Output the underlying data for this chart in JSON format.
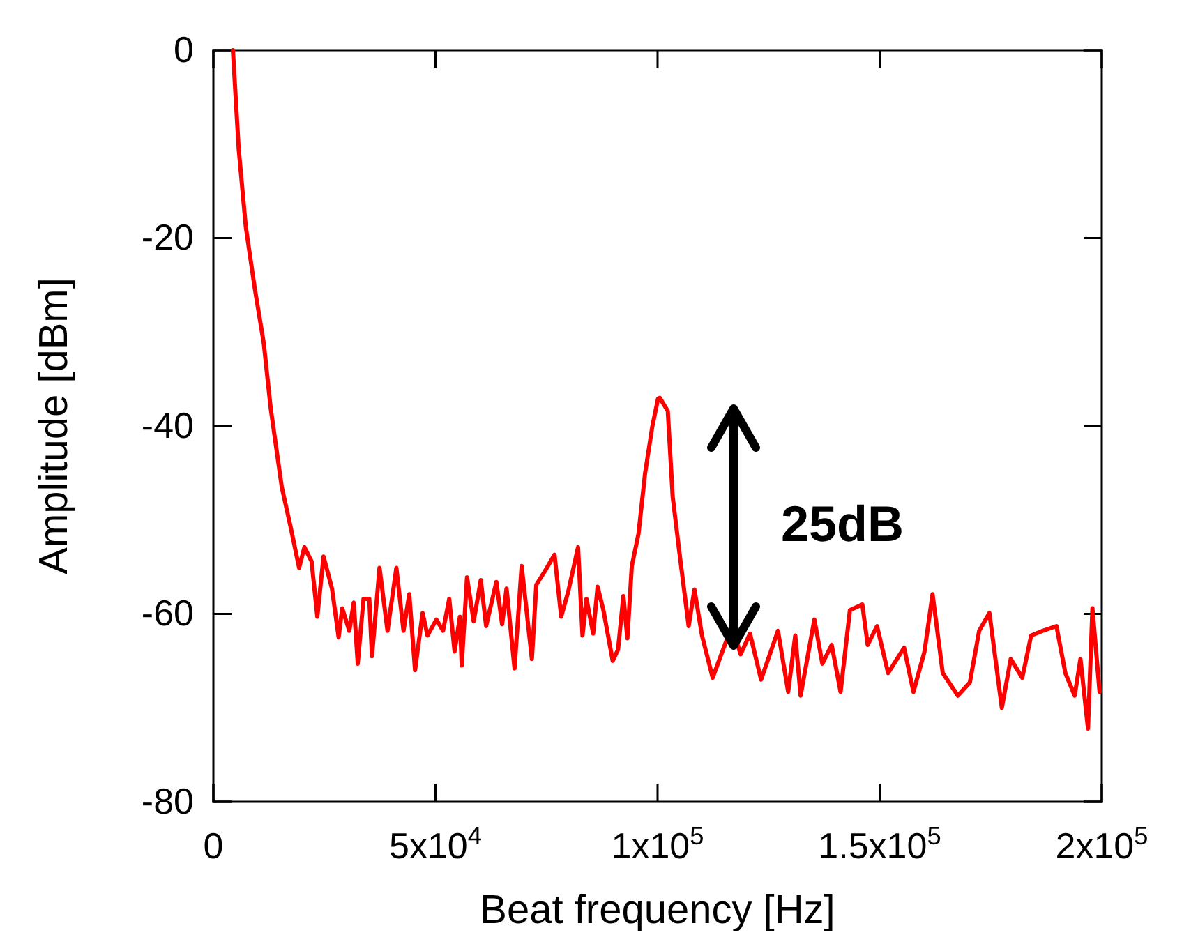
{
  "chart_data": {
    "type": "line",
    "xlabel": "Beat frequency [Hz]",
    "ylabel": "Amplitude [dBm]",
    "xlim": [
      0,
      200000
    ],
    "ylim": [
      -80,
      0
    ],
    "xticks": [
      0,
      {
        "value": 50000,
        "label": "5x10$^{4}$"
      },
      {
        "value": 100000,
        "label": "1x10$^{5}$"
      },
      {
        "value": 150000,
        "label": "1.5x10$^{5}$"
      },
      {
        "value": 200000,
        "label": "2x10$^{5}$"
      }
    ],
    "yticks": [
      -80,
      -60,
      -40,
      -20,
      0
    ],
    "grid": false,
    "marker": "none",
    "line_style": "solid",
    "annotations": [
      "25dB"
    ],
    "series": [
      {
        "color": "#ff0000",
        "x": [
          4400,
          5700,
          7300,
          9300,
          11350,
          12900,
          15400,
          17500,
          19300,
          20500,
          22100,
          23400,
          24800,
          26700,
          28200,
          29000,
          30600,
          31600,
          32500,
          33800,
          35100,
          35700,
          37400,
          39200,
          41200,
          42800,
          44100,
          45400,
          47100,
          48200,
          50200,
          51700,
          53100,
          54300,
          55500,
          55900,
          57100,
          58600,
          60200,
          61400,
          63700,
          65000,
          66000,
          67800,
          69400,
          71700,
          72700,
          74700,
          76800,
          78300,
          79900,
          82100,
          83100,
          84000,
          85500,
          86500,
          87800,
          89900,
          91100,
          92300,
          93200,
          94200,
          95700,
          97200,
          98800,
          100100,
          100500,
          102300,
          103400,
          104900,
          107000,
          108300,
          110000,
          112400,
          116700,
          118700,
          120800,
          123300,
          127100,
          129400,
          131000,
          132200,
          135300,
          137100,
          139200,
          141200,
          143300,
          146100,
          147300,
          149400,
          151900,
          155500,
          157600,
          160100,
          161900,
          164200,
          167600,
          170300,
          172400,
          174700,
          177500,
          179500,
          182100,
          184100,
          186700,
          189800,
          191800,
          193900,
          195200,
          196900,
          197900,
          199500
        ],
        "values": [
          0,
          -10.5,
          -18.8,
          -25.3,
          -31.2,
          -38.1,
          -46.5,
          -51,
          -55.1,
          -52.9,
          -54.4,
          -60.3,
          -53.9,
          -57.3,
          -62.5,
          -59.4,
          -61.8,
          -58.8,
          -65.3,
          -58.4,
          -58.4,
          -64.5,
          -55.1,
          -61.8,
          -55.1,
          -61.8,
          -57.9,
          -66,
          -59.9,
          -62.3,
          -60.6,
          -61.8,
          -58.4,
          -64,
          -60.3,
          -65.5,
          -56.1,
          -60.8,
          -56.4,
          -61.3,
          -56.6,
          -61.1,
          -57.3,
          -65.8,
          -54.9,
          -64.8,
          -56.9,
          -55.4,
          -53.7,
          -60.3,
          -57.6,
          -52.9,
          -62.3,
          -58.4,
          -62.1,
          -57.1,
          -59.6,
          -65,
          -63.8,
          -58.1,
          -62.6,
          -54.9,
          -51.5,
          -45,
          -40.1,
          -37.1,
          -37,
          -38.4,
          -47.5,
          -53.4,
          -61.3,
          -57.4,
          -62.3,
          -66.8,
          -61.3,
          -64.3,
          -62.1,
          -67,
          -61.8,
          -68.3,
          -62.3,
          -68.7,
          -60.6,
          -65.3,
          -63.3,
          -68.3,
          -59.6,
          -59,
          -63.3,
          -61.3,
          -66.3,
          -63.6,
          -68.3,
          -64,
          -57.9,
          -66.3,
          -68.7,
          -67.3,
          -61.8,
          -59.9,
          -70,
          -64.8,
          -66.8,
          -62.3,
          -61.8,
          -61.3,
          -66.3,
          -68.7,
          -64.8,
          -72.2,
          -59.4,
          -68.3
        ]
      }
    ]
  }
}
